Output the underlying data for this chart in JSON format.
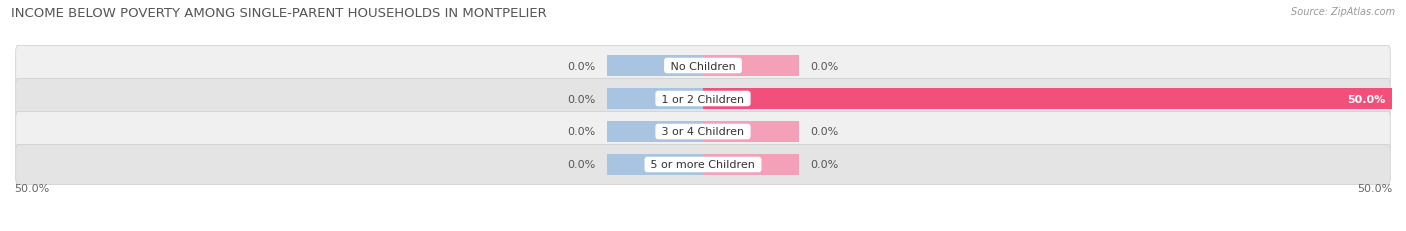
{
  "title": "INCOME BELOW POVERTY AMONG SINGLE-PARENT HOUSEHOLDS IN MONTPELIER",
  "source": "Source: ZipAtlas.com",
  "categories": [
    "No Children",
    "1 or 2 Children",
    "3 or 4 Children",
    "5 or more Children"
  ],
  "single_father": [
    0.0,
    0.0,
    0.0,
    0.0
  ],
  "single_mother": [
    0.0,
    50.0,
    0.0,
    0.0
  ],
  "xlim": [
    -50,
    50
  ],
  "father_color": "#a8c4e0",
  "mother_color_full": "#f0507a",
  "mother_color_stub": "#f4a0b8",
  "bar_bg_light": "#f0f0f0",
  "bar_bg_dark": "#e4e4e4",
  "stub_size": 7,
  "title_fontsize": 9.5,
  "label_fontsize": 8,
  "tick_fontsize": 8,
  "legend_fontsize": 8,
  "source_fontsize": 7
}
